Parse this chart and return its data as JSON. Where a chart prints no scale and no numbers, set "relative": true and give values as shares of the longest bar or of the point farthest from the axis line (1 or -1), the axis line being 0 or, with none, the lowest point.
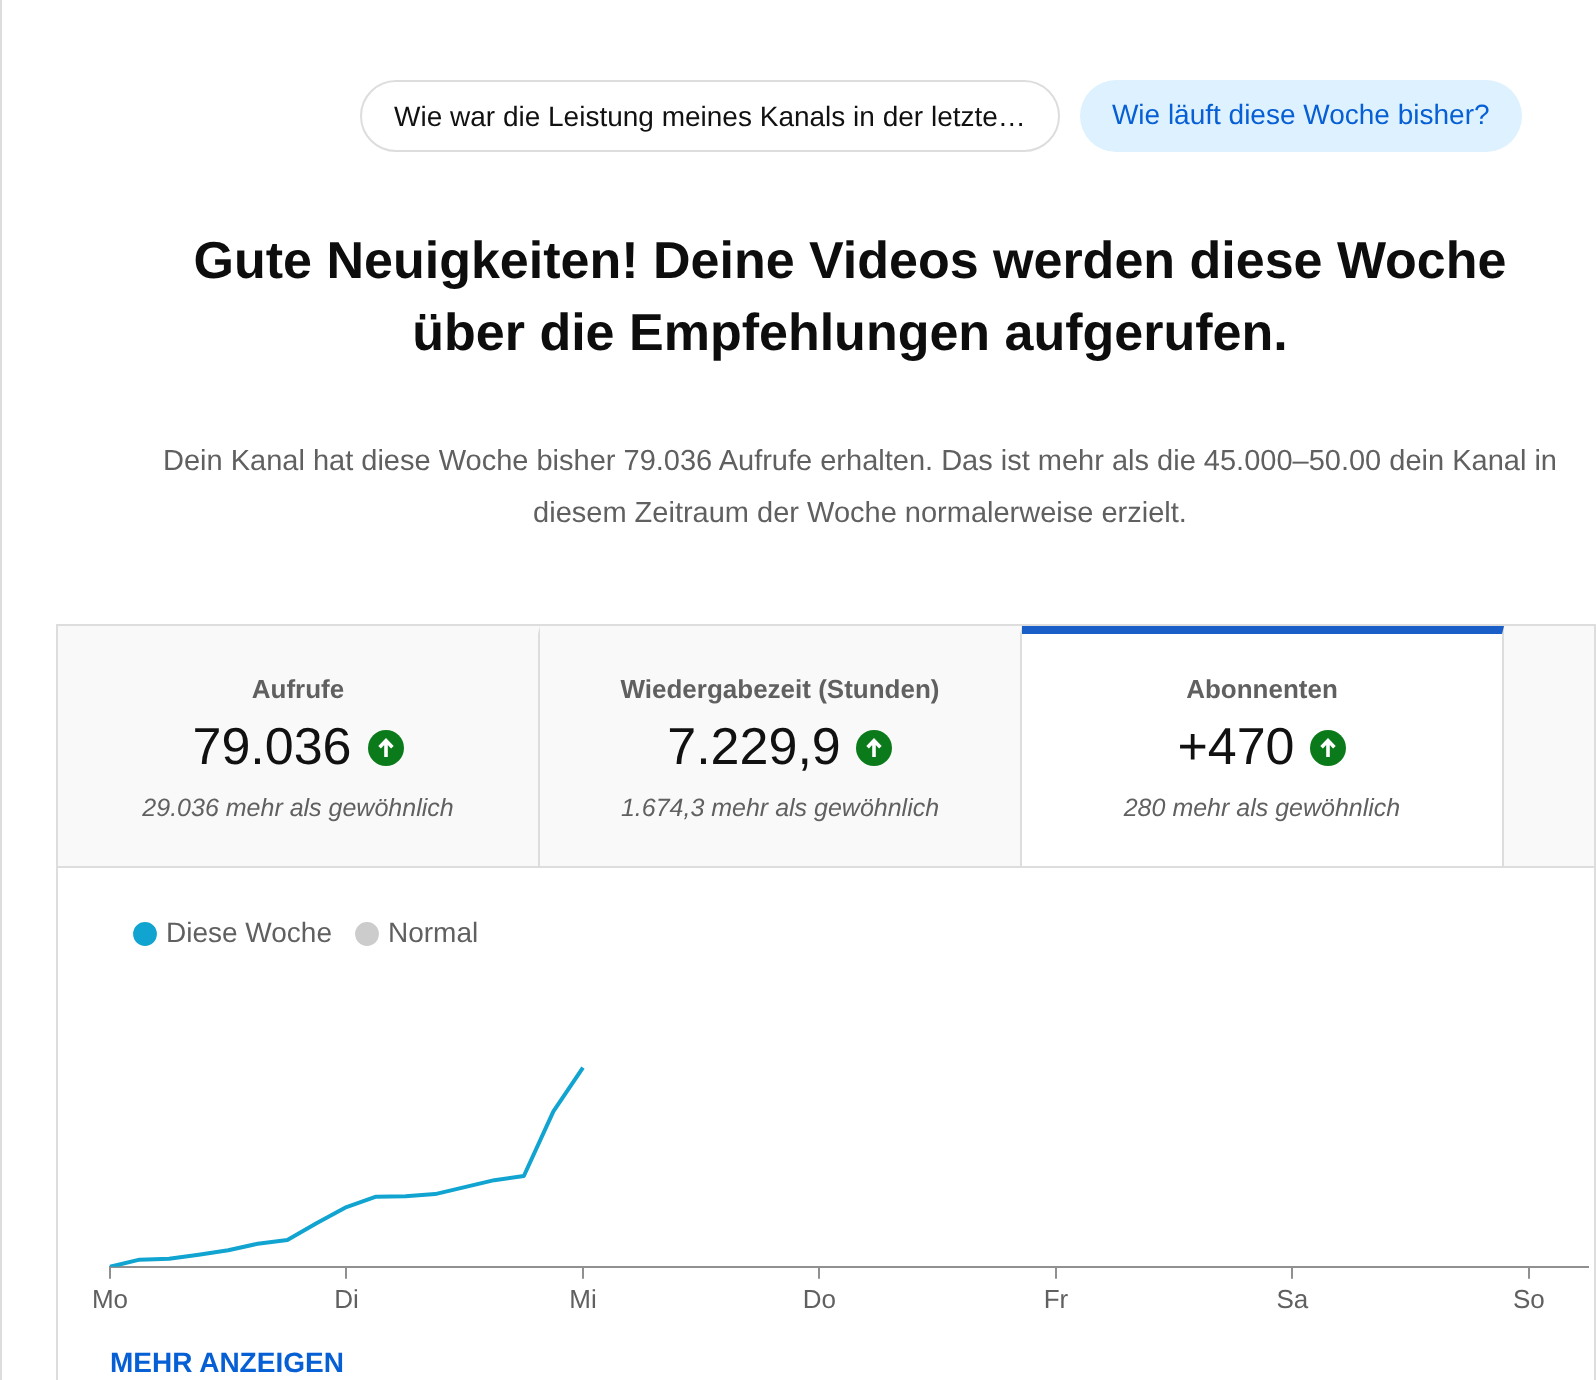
{
  "chart_data": {
    "type": "line",
    "relative": true,
    "legend": "top left",
    "title": "Gute Neuigkeiten! Deine Videos werden diese Woche über die Empfehlungen aufgerufen.",
    "subtitle": "Dein Kanal hat diese Woche bisher 79.036 Aufrufe erhalten. Das ist mehr als die 45.000–50.00 dein Kanal in diesem Zeitraum der Woche normalerweise erzielt.",
    "annotations": [
      "Wie war die Leistung meines Kanals in der letzte…",
      "Wie läuft diese Woche bisher?",
      "Aufrufe",
      "79.036",
      "29.036 mehr als gewöhnlich",
      "Wiedergabezeit (Stunden)",
      "7.229,9",
      "1.674,3 mehr als gewöhnlich",
      "Abonnenten",
      "+470",
      "280 mehr als gewöhnlich",
      "MEHR ANZEIGEN"
    ],
    "categories": [
      "Mo",
      null,
      null,
      null,
      null,
      null,
      null,
      null,
      "Di",
      null,
      null,
      null,
      null,
      null,
      null,
      null,
      "Mi",
      null,
      null,
      null,
      null,
      null,
      null,
      null,
      "Do",
      null,
      null,
      null,
      null,
      null,
      null,
      null,
      "Fr",
      null,
      null,
      null,
      null,
      null,
      null,
      null,
      "Sa",
      null,
      null,
      null,
      null,
      null,
      null,
      null,
      "So",
      null,
      null
    ],
    "series": [
      {
        "name": "Diese Woche",
        "color": "#12a4d0",
        "values": [
          0,
          0.036,
          0.04,
          0.06,
          0.083,
          0.116,
          0.135,
          0.22,
          0.3,
          0.352,
          0.354,
          0.365,
          0.4,
          0.435,
          0.456,
          0.78,
          1,
          null,
          null,
          null,
          null,
          null,
          null,
          null,
          null,
          null,
          null,
          null,
          null,
          null,
          null,
          null,
          null,
          null,
          null,
          null,
          null,
          null,
          null,
          null,
          null,
          null,
          null,
          null,
          null,
          null,
          null,
          null,
          null,
          null,
          null
        ]
      },
      {
        "name": "Normal",
        "color": "#cccccc",
        "values": [
          null,
          null,
          null,
          null,
          null,
          null,
          null,
          null,
          null,
          null,
          null,
          null,
          null,
          null,
          null,
          null,
          null,
          null,
          null,
          null,
          null,
          null,
          null,
          null,
          null,
          null,
          null,
          null,
          null,
          null,
          null,
          null,
          null,
          null,
          null,
          null,
          null,
          null,
          null,
          null,
          null,
          null,
          null,
          null,
          null,
          null,
          null,
          null,
          null,
          null,
          null
        ]
      }
    ]
  }
}
